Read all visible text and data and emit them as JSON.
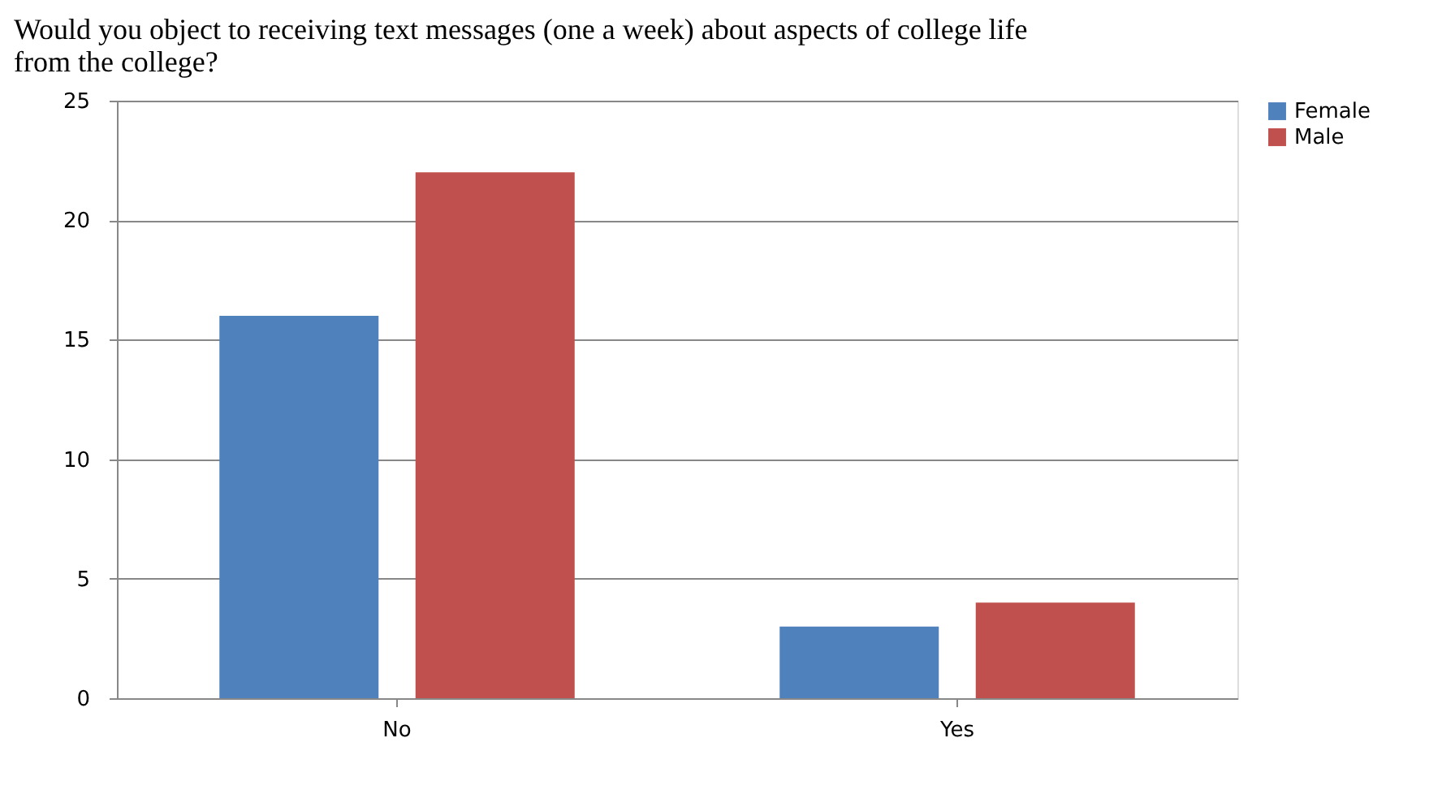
{
  "chart_data": {
    "type": "bar",
    "title": "Would you object to receiving text messages (one a week) about aspects of college life from the college?",
    "categories": [
      "No",
      "Yes"
    ],
    "series": [
      {
        "name": "Female",
        "color": "#4f81bd",
        "values": [
          16,
          3
        ]
      },
      {
        "name": "Male",
        "color": "#c0504d",
        "values": [
          22,
          4
        ]
      }
    ],
    "ylim": [
      0,
      25
    ],
    "yticks": [
      0,
      5,
      10,
      15,
      20,
      25
    ],
    "grid": "y",
    "legend": "right"
  }
}
